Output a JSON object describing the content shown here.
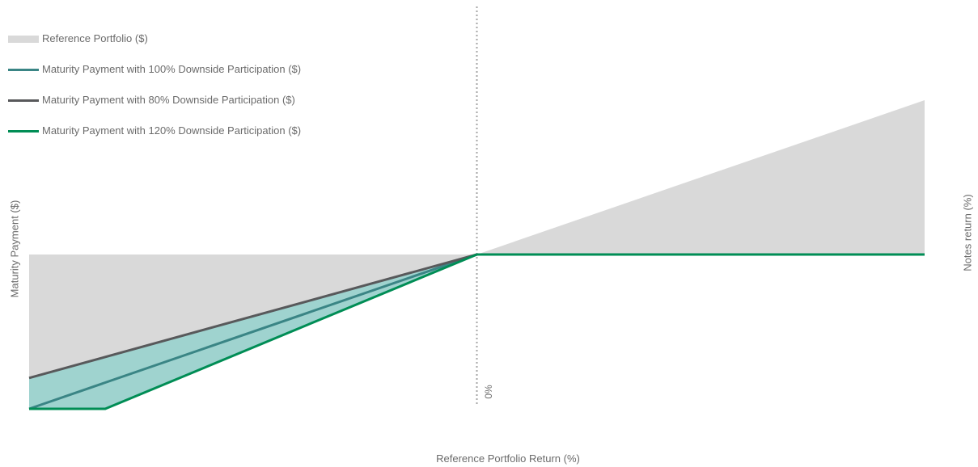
{
  "chart_data": {
    "type": "area",
    "title": "",
    "xlabel": "Reference Portfolio Return (%)",
    "ylabel": "Maturity Payment ($)",
    "ylabel_right": "Notes return (%)",
    "x_tick_labels": [
      "0%"
    ],
    "xlim": [
      -100,
      100
    ],
    "ylim": [
      -100,
      100
    ],
    "grid": false,
    "legend_position": "top-left",
    "reference_line": {
      "x": 0,
      "style": "dotted",
      "color": "#a6a6a6"
    },
    "series": [
      {
        "name": "Reference Portfolio ($)",
        "kind": "area",
        "color": "#d9d9d9",
        "x": [
          -100,
          0,
          100
        ],
        "y": [
          -100,
          0,
          100
        ]
      },
      {
        "name": "Maturity Payment with 100% Downside Participation ($)",
        "kind": "line",
        "color": "#3a8585",
        "x": [
          -100,
          0,
          100
        ],
        "y": [
          -100,
          0,
          0
        ]
      },
      {
        "name": "Maturity Payment with 80% Downside Participation ($)",
        "kind": "line",
        "color": "#58595b",
        "x": [
          -100,
          0,
          100
        ],
        "y": [
          -80,
          0,
          0
        ]
      },
      {
        "name": "Maturity Payment with 120% Downside Participation ($)",
        "kind": "line",
        "color": "#008d55",
        "x": [
          -100,
          -83,
          0,
          100
        ],
        "y": [
          -100,
          -100,
          0,
          0
        ]
      }
    ],
    "band": {
      "color": "#9fd3cf",
      "between": [
        "Maturity Payment with 80% Downside Participation ($)",
        "Maturity Payment with 120% Downside Participation ($)"
      ]
    }
  }
}
